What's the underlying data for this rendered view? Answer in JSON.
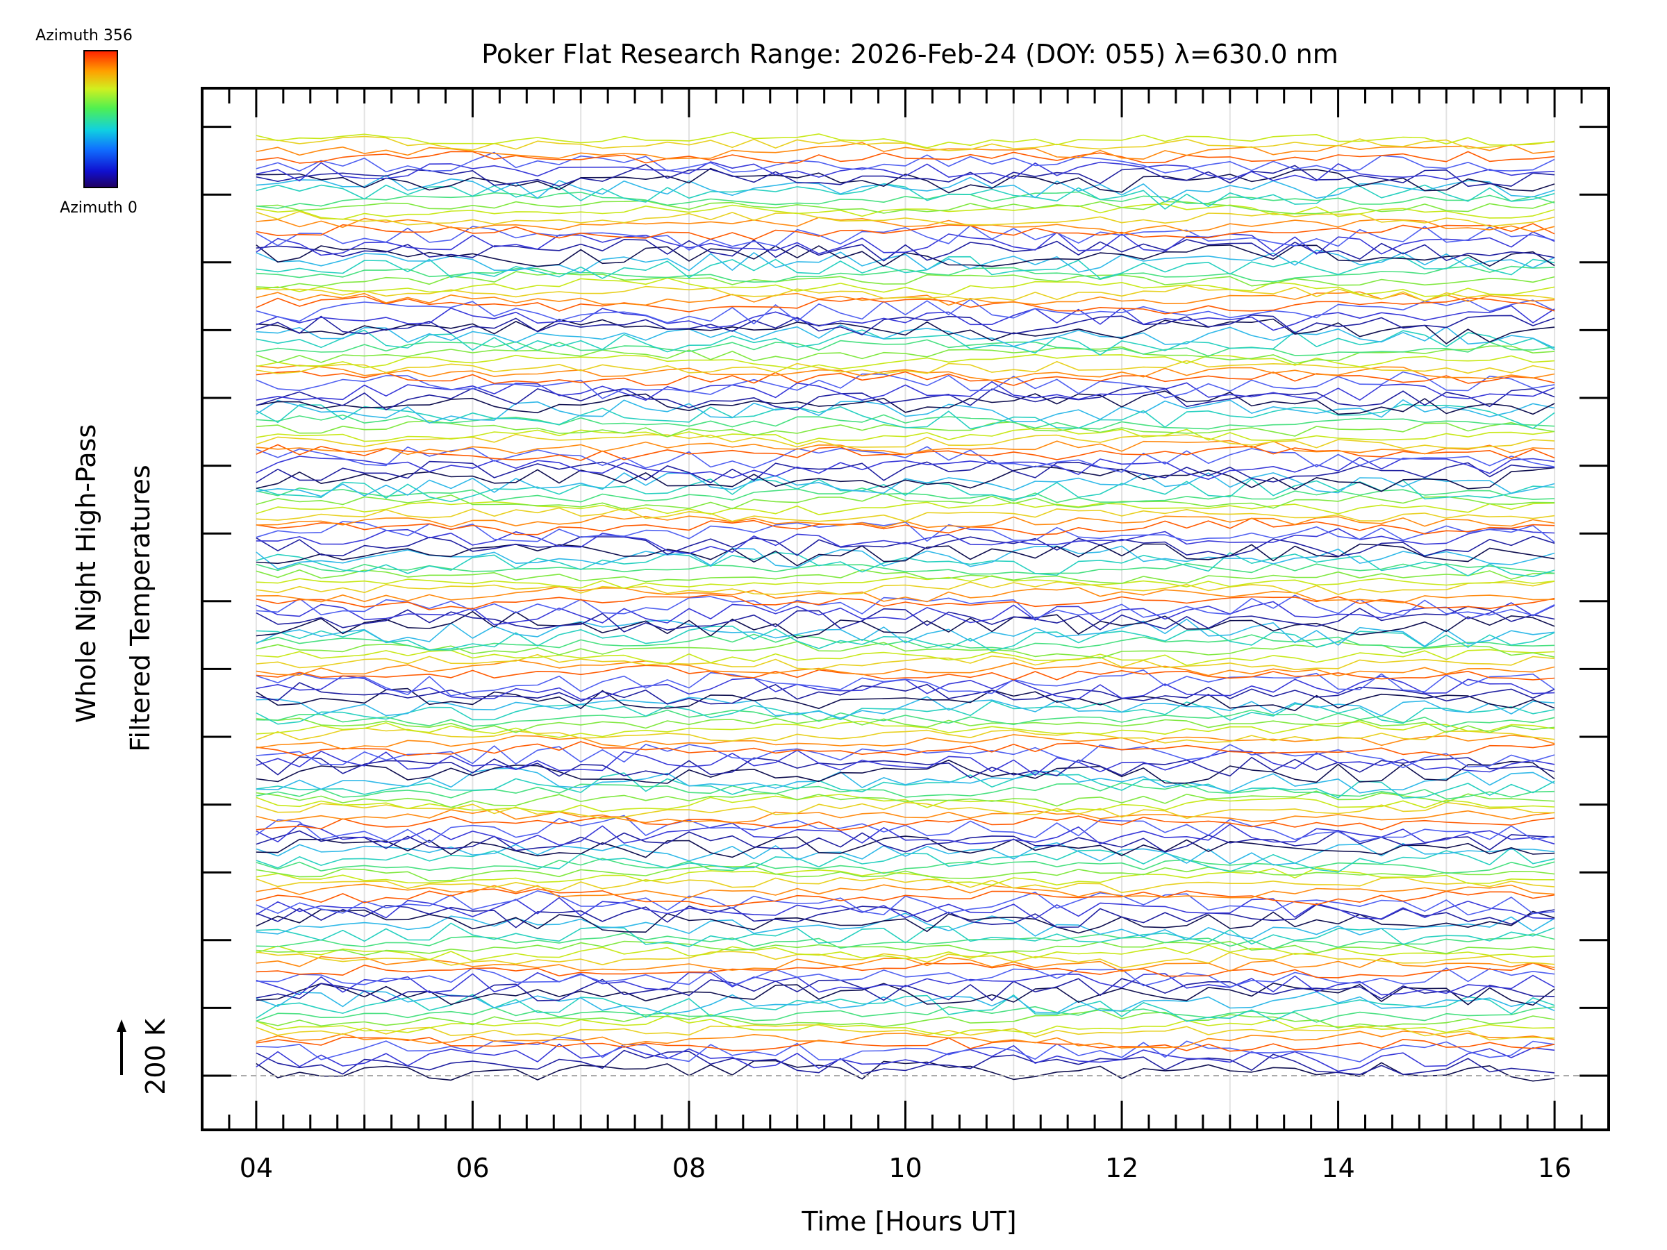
{
  "chart_data": {
    "type": "line",
    "title": "Poker Flat Research Range: 2026-Feb-24 (DOY: 055) λ=630.0 nm",
    "xlabel": "Time [Hours UT]",
    "ylabel_line1": "Whole Night High-Pass",
    "ylabel_line2": "Filtered Temperatures",
    "xlim": [
      3.5,
      16.5
    ],
    "x_ticks": [
      "04",
      "06",
      "08",
      "10",
      "12",
      "14",
      "16"
    ],
    "x_tick_values": [
      4,
      6,
      8,
      10,
      12,
      14,
      16
    ],
    "x_minor_step": 0.25,
    "y_ticks_count": 15,
    "scale_bar_label": "200 K",
    "baseline_label_value": 200,
    "colorbar": {
      "top_label": "Azimuth 356",
      "bottom_label": "Azimuth 0",
      "min": 0,
      "max": 356
    },
    "series_summary": {
      "count": 152,
      "time_start": 4.0,
      "time_end": 15.95,
      "sample_step_hours": 0.2,
      "stacked_offsets": true,
      "color_by": "azimuth"
    }
  }
}
